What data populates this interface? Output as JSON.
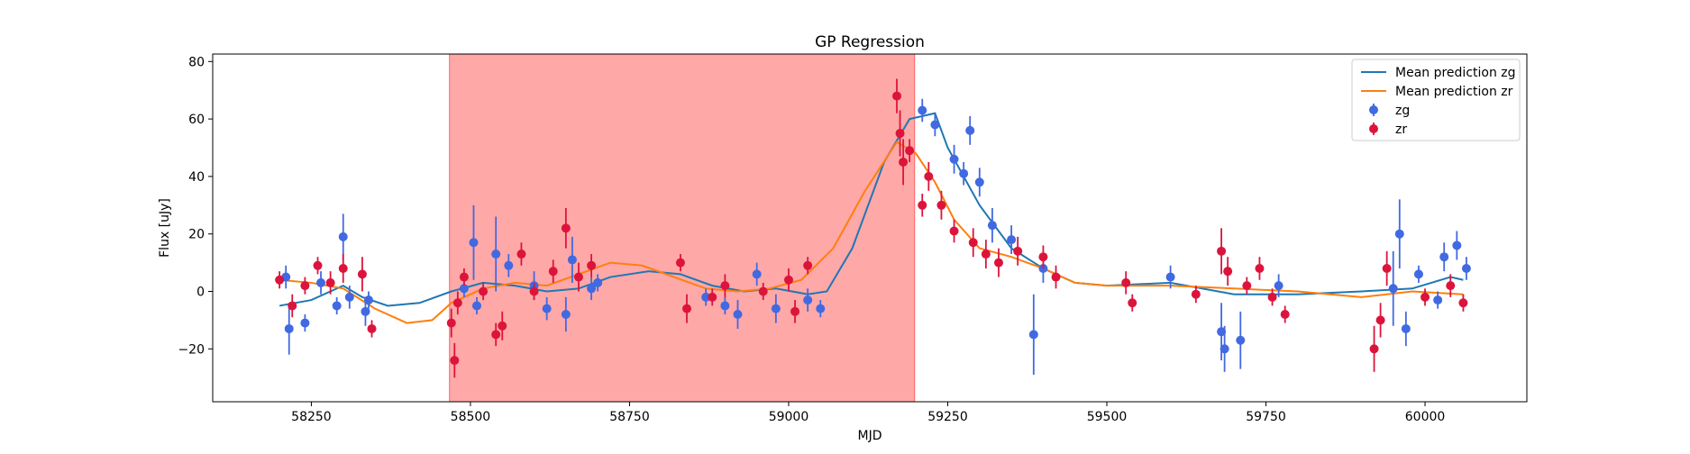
{
  "chart_data": {
    "type": "line",
    "title": "GP Regression",
    "x_label": "MJD",
    "y_label": "Flux [uJy]",
    "xlim": [
      58095,
      60160
    ],
    "ylim": [
      -38.4,
      82.6
    ],
    "xticks": [
      58250,
      58500,
      58750,
      59000,
      59250,
      59500,
      59750,
      60000
    ],
    "yticks": [
      {
        "value": -20,
        "label": "−20"
      },
      0,
      20,
      40,
      60,
      80
    ],
    "shaded_region": {
      "x": [
        58467,
        59198
      ],
      "color": "#ff0000"
    },
    "legend": "upper right",
    "series": [
      {
        "name": "Mean prediction zg",
        "type": "line",
        "color": "#1f77b4",
        "x": [
          58200,
          58250,
          58300,
          58330,
          58370,
          58420,
          58470,
          58520,
          58570,
          58620,
          58670,
          58720,
          58780,
          58830,
          58880,
          58930,
          58980,
          59030,
          59060,
          59100,
          59150,
          59190,
          59230,
          59250,
          59300,
          59350,
          59400,
          59450,
          59500,
          59600,
          59700,
          59800,
          59900,
          59980,
          60040,
          60060
        ],
        "values": [
          -5,
          -3,
          2,
          -2,
          -5,
          -4,
          0,
          3,
          2,
          0,
          1,
          5,
          7,
          6,
          2,
          0,
          1,
          -1,
          0,
          15,
          45,
          60,
          62,
          50,
          30,
          15,
          8,
          3,
          2,
          3,
          -1,
          -1,
          0,
          1,
          5,
          4
        ]
      },
      {
        "name": "Mean prediction zr",
        "type": "line",
        "color": "#ff7f0e",
        "x": [
          58200,
          58250,
          58300,
          58350,
          58400,
          58440,
          58470,
          58520,
          58570,
          58620,
          58670,
          58720,
          58770,
          58820,
          58870,
          58920,
          58970,
          59020,
          59070,
          59120,
          59170,
          59200,
          59230,
          59260,
          59300,
          59350,
          59400,
          59450,
          59500,
          59600,
          59700,
          59800,
          59900,
          59980,
          60060
        ],
        "values": [
          4,
          3,
          1,
          -6,
          -11,
          -10,
          -4,
          1,
          3,
          2,
          6,
          10,
          9,
          5,
          1,
          0,
          1,
          4,
          15,
          35,
          52,
          48,
          38,
          25,
          15,
          12,
          8,
          3,
          2,
          2,
          1,
          0,
          -2,
          0,
          -1
        ]
      },
      {
        "name": "zg",
        "type": "errorbar",
        "color": "#4169e1",
        "x": [
          58210,
          58215,
          58240,
          58265,
          58290,
          58300,
          58310,
          58335,
          58340,
          58490,
          58505,
          58510,
          58540,
          58560,
          58600,
          58620,
          58650,
          58660,
          58690,
          58700,
          58870,
          58900,
          58920,
          58950,
          58980,
          59030,
          59050,
          59210,
          59230,
          59260,
          59275,
          59285,
          59300,
          59320,
          59350,
          59385,
          59400,
          59600,
          59680,
          59685,
          59710,
          59770,
          59950,
          59960,
          59970,
          59990,
          60020,
          60030,
          60050,
          60065
        ],
        "values": [
          5,
          -13,
          -11,
          3,
          -5,
          19,
          -2,
          -7,
          -3,
          1,
          17,
          -5,
          13,
          9,
          2,
          -6,
          -8,
          11,
          1,
          3,
          -2,
          -5,
          -8,
          6,
          -6,
          -3,
          -6,
          63,
          58,
          46,
          41,
          56,
          38,
          23,
          18,
          -15,
          8,
          5,
          -14,
          -20,
          -17,
          2,
          1,
          20,
          -13,
          6,
          -3,
          12,
          16,
          8
        ],
        "errors": [
          4,
          9,
          3,
          4,
          3,
          8,
          4,
          5,
          3,
          3,
          13,
          3,
          13,
          4,
          5,
          4,
          6,
          8,
          4,
          3,
          3,
          3,
          5,
          4,
          5,
          4,
          3,
          4,
          4,
          5,
          4,
          5,
          5,
          6,
          5,
          14,
          5,
          4,
          10,
          8,
          10,
          4,
          13,
          12,
          6,
          3,
          3,
          5,
          5,
          4
        ]
      },
      {
        "name": "zr",
        "type": "errorbar",
        "color": "#dc143c",
        "x": [
          58200,
          58220,
          58240,
          58260,
          58280,
          58300,
          58330,
          58345,
          58470,
          58475,
          58480,
          58490,
          58520,
          58540,
          58550,
          58580,
          58600,
          58630,
          58650,
          58670,
          58690,
          58830,
          58840,
          58880,
          58900,
          58960,
          59000,
          59010,
          59030,
          59170,
          59175,
          59180,
          59190,
          59210,
          59220,
          59240,
          59260,
          59290,
          59310,
          59330,
          59360,
          59400,
          59420,
          59530,
          59540,
          59640,
          59680,
          59690,
          59720,
          59740,
          59760,
          59780,
          59920,
          59930,
          59940,
          60000,
          60040,
          60060
        ],
        "values": [
          4,
          -5,
          2,
          9,
          3,
          8,
          6,
          -13,
          -11,
          -24,
          -4,
          5,
          0,
          -15,
          -12,
          13,
          0,
          7,
          22,
          5,
          9,
          10,
          -6,
          -2,
          2,
          0,
          4,
          -7,
          9,
          68,
          55,
          45,
          49,
          30,
          40,
          30,
          21,
          17,
          13,
          10,
          14,
          12,
          5,
          3,
          -4,
          -1,
          14,
          7,
          2,
          8,
          -2,
          -8,
          -20,
          -10,
          8,
          -2,
          2,
          -4
        ],
        "errors": [
          3,
          4,
          3,
          3,
          4,
          5,
          6,
          3,
          5,
          6,
          4,
          3,
          3,
          4,
          5,
          4,
          3,
          4,
          7,
          5,
          4,
          3,
          5,
          3,
          4,
          3,
          4,
          4,
          3,
          6,
          8,
          8,
          4,
          4,
          5,
          5,
          4,
          5,
          5,
          5,
          5,
          4,
          4,
          4,
          3,
          3,
          8,
          5,
          3,
          4,
          3,
          3,
          8,
          6,
          6,
          3,
          4,
          3
        ]
      }
    ]
  }
}
